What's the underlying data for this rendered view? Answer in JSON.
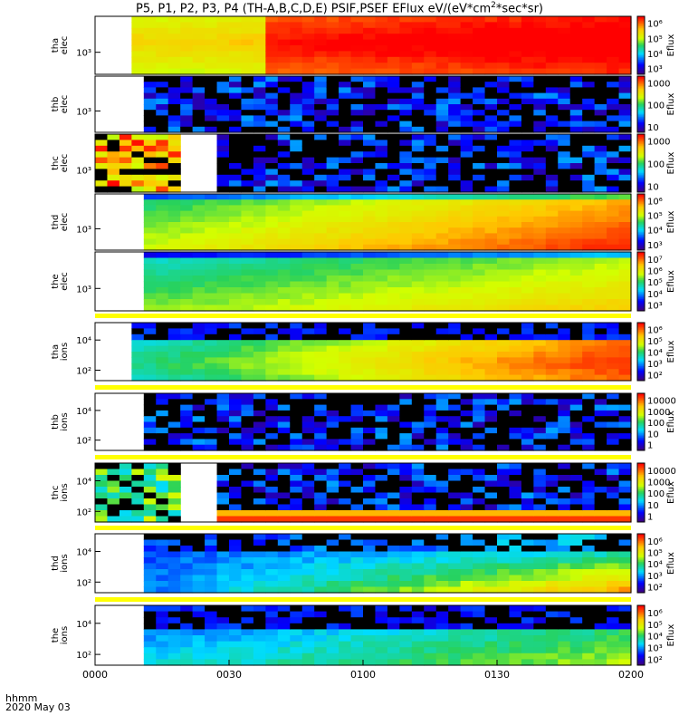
{
  "title": "P5, P1, P2, P3, P4 (TH-A,B,C,D,E) PSIF,PSEF EFlux eV/(eV*cm",
  "title_sup": "2",
  "title_end": "*sec*sr)",
  "footer": {
    "line1": "hhmm",
    "line2": "2020 May 03"
  },
  "chart_data": {
    "type": "heatmap",
    "x_ticks": [
      "0000",
      "0030",
      "0100",
      "0130",
      "0200"
    ],
    "colorbar_label": "Eflux",
    "panels": [
      {
        "name": "tha",
        "species": "elec",
        "y_ticks": [
          "10³"
        ],
        "color_ticks": [
          "10⁶",
          "10⁵",
          "10⁴",
          "10³"
        ],
        "data_start": 0.07,
        "gap": null,
        "level_lo": 0.55,
        "level_hi": 0.97,
        "profile": "tha_elec"
      },
      {
        "name": "thb",
        "species": "elec",
        "y_ticks": [
          "10³"
        ],
        "color_ticks": [
          "1000",
          "100",
          "10"
        ],
        "data_start": 0.095,
        "gap": null,
        "level_lo": 0.05,
        "level_hi": 0.3,
        "profile": "noisy"
      },
      {
        "name": "thc",
        "species": "elec",
        "y_ticks": [
          "10³"
        ],
        "color_ticks": [
          "1000",
          "100",
          "10"
        ],
        "data_start": 0.0,
        "gap": [
          0.15,
          0.22
        ],
        "level_lo": 0.05,
        "level_hi": 0.3,
        "profile": "thc"
      },
      {
        "name": "thd",
        "species": "elec",
        "y_ticks": [
          "10³"
        ],
        "color_ticks": [
          "10⁶",
          "10⁵",
          "10⁴",
          "10³"
        ],
        "data_start": 0.095,
        "gap": null,
        "level_lo": 0.35,
        "level_hi": 0.93,
        "profile": "smooth"
      },
      {
        "name": "the",
        "species": "elec",
        "y_ticks": [
          "10³"
        ],
        "color_ticks": [
          "10⁷",
          "10⁶",
          "10⁵",
          "10⁴",
          "10³"
        ],
        "data_start": 0.1,
        "gap": null,
        "level_lo": 0.3,
        "level_hi": 0.72,
        "profile": "smooth"
      },
      {
        "name": "tha",
        "species": "ions",
        "y_ticks": [
          "10⁴",
          "10²"
        ],
        "color_ticks": [
          "10⁶",
          "10⁵",
          "10⁴",
          "10³",
          "10²"
        ],
        "data_start": 0.07,
        "gap": null,
        "level_lo": 0.2,
        "level_hi": 0.85,
        "profile": "ions_a"
      },
      {
        "name": "thb",
        "species": "ions",
        "y_ticks": [
          "10⁴",
          "10²"
        ],
        "color_ticks": [
          "10000",
          "1000",
          "100",
          "10",
          "1"
        ],
        "data_start": 0.095,
        "gap": null,
        "level_lo": 0.05,
        "level_hi": 0.3,
        "profile": "noisy"
      },
      {
        "name": "thc",
        "species": "ions",
        "y_ticks": [
          "10⁴",
          "10²"
        ],
        "color_ticks": [
          "10000",
          "1000",
          "100",
          "10",
          "1"
        ],
        "data_start": 0.0,
        "gap": [
          0.15,
          0.22
        ],
        "level_lo": 0.05,
        "level_hi": 0.3,
        "profile": "thc_ions"
      },
      {
        "name": "thd",
        "species": "ions",
        "y_ticks": [
          "10⁴",
          "10²"
        ],
        "color_ticks": [
          "10⁶",
          "10⁵",
          "10⁴",
          "10³",
          "10²"
        ],
        "data_start": 0.1,
        "gap": null,
        "level_lo": 0.1,
        "level_hi": 0.85,
        "profile": "ions_d"
      },
      {
        "name": "the",
        "species": "ions",
        "y_ticks": [
          "10⁴",
          "10²"
        ],
        "color_ticks": [
          "10⁶",
          "10⁵",
          "10⁴",
          "10³",
          "10²"
        ],
        "data_start": 0.1,
        "gap": null,
        "level_lo": 0.1,
        "level_hi": 0.55,
        "profile": "ions_e"
      }
    ]
  }
}
